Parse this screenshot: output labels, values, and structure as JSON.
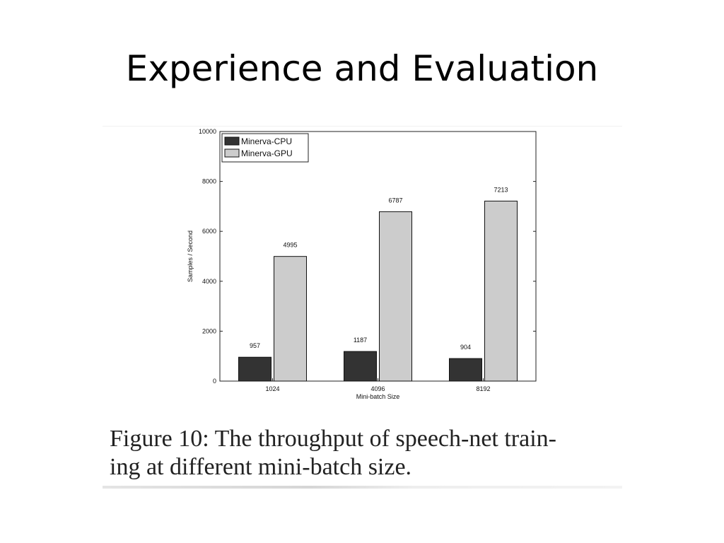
{
  "slide": {
    "title": "Experience and Evaluation"
  },
  "caption": {
    "line1": "Figure 10: The throughput of speech-net train-",
    "line2": "ing at different mini-batch size."
  },
  "chart_data": {
    "type": "bar",
    "categories": [
      "1024",
      "4096",
      "8192"
    ],
    "series": [
      {
        "name": "Minerva-CPU",
        "values": [
          957,
          1187,
          904
        ],
        "color": "#333333"
      },
      {
        "name": "Minerva-GPU",
        "values": [
          4995,
          6787,
          7213
        ],
        "color": "#cccccc"
      }
    ],
    "data_labels": [
      [
        "957",
        "1187",
        "904"
      ],
      [
        "4995",
        "6787",
        "7213"
      ]
    ],
    "xlabel": "Mini-batch Size",
    "ylabel": "Samples / Second",
    "ylim": [
      0,
      10000
    ],
    "yticks": [
      0,
      2000,
      4000,
      6000,
      8000,
      10000
    ],
    "ytick_labels": [
      "0",
      "2000",
      "4000",
      "6000",
      "8000",
      "10000"
    ],
    "legend_position": "top-left",
    "grid": false
  }
}
